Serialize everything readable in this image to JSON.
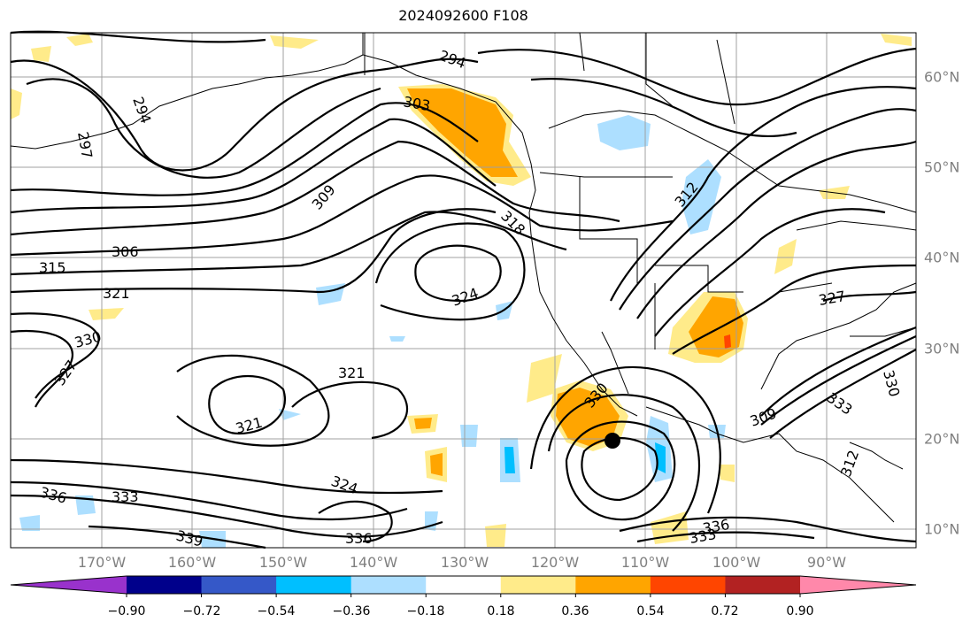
{
  "title": "2024092600 F108",
  "lon_labels": [
    "170°W",
    "160°W",
    "150°W",
    "140°W",
    "130°W",
    "120°W",
    "110°W",
    "100°W",
    "90°W"
  ],
  "lat_labels": [
    "60°N",
    "50°N",
    "40°N",
    "30°N",
    "20°N",
    "10°N"
  ],
  "colorbar": {
    "colors": [
      "#9932CC",
      "#00008B",
      "#3558C8",
      "#00BFFF",
      "#ADDFFF",
      "#FFFFFF",
      "#FFEB8A",
      "#FFA500",
      "#FF4500",
      "#B22222",
      "#FF88AA"
    ],
    "tick_labels": [
      "−0.90",
      "−0.72",
      "−0.54",
      "−0.36",
      "−0.18",
      "0.18",
      "0.36",
      "0.54",
      "0.72",
      "0.90"
    ]
  },
  "contour_labels": [
    "294",
    "297",
    "294",
    "309",
    "306",
    "315",
    "321",
    "330",
    "327",
    "318",
    "324",
    "321",
    "321",
    "336",
    "333",
    "339",
    "324",
    "336",
    "330",
    "333",
    "336",
    "333",
    "330",
    "327",
    "312",
    "309",
    "312",
    "303"
  ],
  "storm_marker": {
    "lon": -113.5,
    "lat": 19.8
  }
}
